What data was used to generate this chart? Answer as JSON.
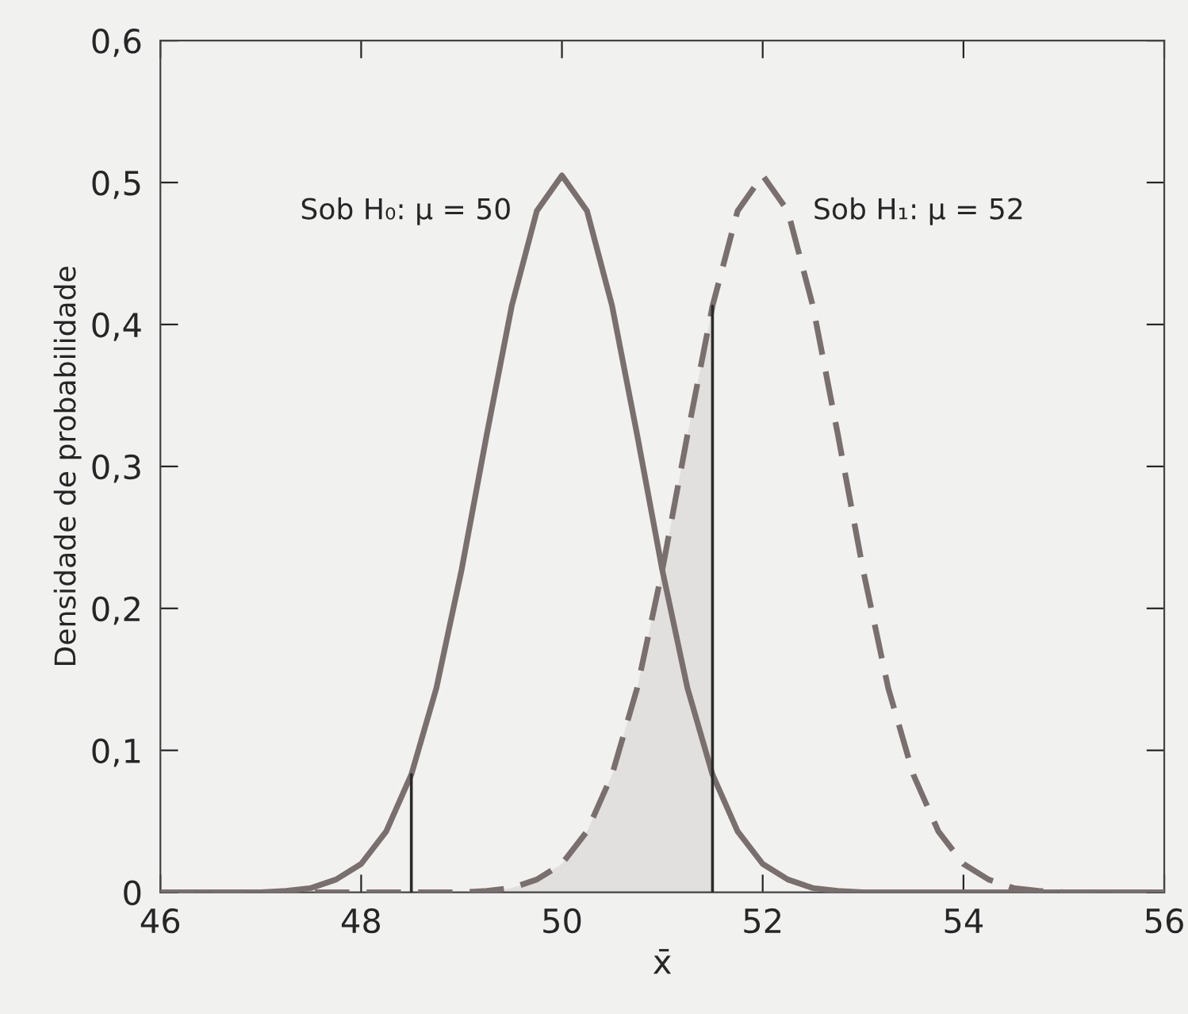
{
  "chart_data": {
    "type": "line",
    "xlabel": "x̄",
    "ylabel": "Densidade de probabilidade",
    "xlim": [
      46,
      56
    ],
    "ylim": [
      0,
      0.6
    ],
    "xticks": [
      46,
      48,
      50,
      52,
      54,
      56
    ],
    "yticks": [
      0,
      {
        "value": 0.1,
        "label": "0,1"
      },
      {
        "value": 0.2,
        "label": "0,2"
      },
      {
        "value": 0.3,
        "label": "0,3"
      },
      {
        "value": 0.4,
        "label": "0,4"
      },
      {
        "value": 0.5,
        "label": "0,5"
      },
      {
        "value": 0.6,
        "label": "0,6"
      }
    ],
    "grid": false,
    "legend": false,
    "series": [
      {
        "type": "area",
        "color": "#e2e0df",
        "x": [
          49.25,
          49.5,
          49.75,
          50,
          50.25,
          50.5,
          50.75,
          51,
          51.25,
          51.5
        ],
        "values": [
          0.001,
          0.003,
          0.009,
          0.02,
          0.043,
          0.083,
          0.144,
          0.227,
          0.322,
          0.413
        ]
      },
      {
        "name": "Sob H₀: μ = 50",
        "color": "#7a6f6f",
        "line_style": "solid",
        "x": [
          46,
          46.25,
          46.5,
          46.75,
          47,
          47.25,
          47.5,
          47.75,
          48,
          48.25,
          48.5,
          48.75,
          49,
          49.25,
          49.5,
          49.75,
          50,
          50.25,
          50.5,
          50.75,
          51,
          51.25,
          51.5,
          51.75,
          52,
          52.25,
          52.5,
          52.75,
          53,
          53.25,
          53.5,
          53.75,
          54,
          54.25,
          54.5,
          54.75,
          55,
          55.25,
          55.5,
          55.75,
          56
        ],
        "values": [
          0,
          0,
          0,
          0,
          0,
          0.001,
          0.003,
          0.009,
          0.02,
          0.043,
          0.083,
          0.144,
          0.227,
          0.322,
          0.413,
          0.48,
          0.505,
          0.48,
          0.413,
          0.322,
          0.227,
          0.144,
          0.083,
          0.043,
          0.02,
          0.009,
          0.003,
          0.001,
          0,
          0,
          0,
          0,
          0,
          0,
          0,
          0,
          0,
          0,
          0,
          0,
          0
        ]
      },
      {
        "name": "Sob H₁: μ = 52",
        "color": "#7a6f6f",
        "line_style": "dashed",
        "x": [
          46,
          46.25,
          46.5,
          46.75,
          47,
          47.25,
          47.5,
          47.75,
          48,
          48.25,
          48.5,
          48.75,
          49,
          49.25,
          49.5,
          49.75,
          50,
          50.25,
          50.5,
          50.75,
          51,
          51.25,
          51.5,
          51.75,
          52,
          52.25,
          52.5,
          52.75,
          53,
          53.25,
          53.5,
          53.75,
          54,
          54.25,
          54.5,
          54.75,
          55,
          55.25,
          55.5,
          55.75,
          56
        ],
        "values": [
          0,
          0,
          0,
          0,
          0,
          0,
          0,
          0,
          0,
          0,
          0,
          0,
          0,
          0.001,
          0.003,
          0.009,
          0.02,
          0.043,
          0.083,
          0.144,
          0.227,
          0.322,
          0.413,
          0.48,
          0.505,
          0.48,
          0.413,
          0.322,
          0.227,
          0.144,
          0.083,
          0.043,
          0.02,
          0.009,
          0.003,
          0.001,
          0,
          0,
          0,
          0,
          0
        ]
      },
      {
        "color": "#2b2b2b",
        "line_style": "solid",
        "x": [
          48.5,
          48.5
        ],
        "values": [
          0,
          0.083
        ]
      },
      {
        "color": "#2b2b2b",
        "line_style": "solid",
        "x": [
          51.5,
          51.5
        ],
        "values": [
          0,
          0.413
        ]
      }
    ]
  }
}
